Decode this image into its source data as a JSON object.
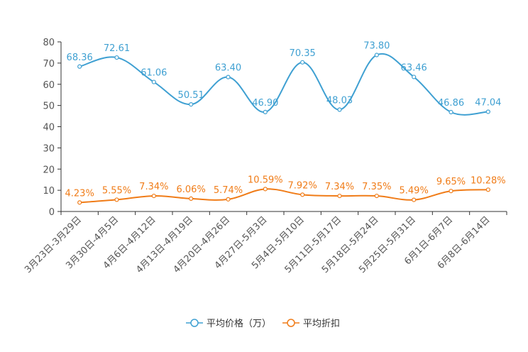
{
  "chart_data": {
    "type": "line",
    "categories": [
      "3月23日-3月29日",
      "3月30日-4月5日",
      "4月6日-4月12日",
      "4月13日-4月19日",
      "4月20日-4月26日",
      "4月27日-5月3日",
      "5月4日-5月10日",
      "5月11日-5月17日",
      "5月18日-5月24日",
      "5月25日-5月31日",
      "6月1日-6月7日",
      "6月8日-6月14日"
    ],
    "ylim": [
      0,
      80
    ],
    "yticks": [
      0,
      10,
      20,
      30,
      40,
      50,
      60,
      70,
      80
    ],
    "smooth": true,
    "series": [
      {
        "name": "平均价格（万）",
        "color": "#3fa0d2",
        "values": [
          68.36,
          72.61,
          61.06,
          50.51,
          63.4,
          46.9,
          70.35,
          48.03,
          73.8,
          63.46,
          46.86,
          47.04
        ],
        "labels": [
          "68.36",
          "72.61",
          "61.06",
          "50.51",
          "63.40",
          "46.90",
          "70.35",
          "48.03",
          "73.80",
          "63.46",
          "46.86",
          "47.04"
        ]
      },
      {
        "name": "平均折扣",
        "color": "#f07c18",
        "values": [
          4.23,
          5.55,
          7.34,
          6.06,
          5.74,
          10.59,
          7.92,
          7.34,
          7.35,
          5.49,
          9.65,
          10.28
        ],
        "labels": [
          "4.23%",
          "5.55%",
          "7.34%",
          "6.06%",
          "5.74%",
          "10.59%",
          "7.92%",
          "7.34%",
          "7.35%",
          "5.49%",
          "9.65%",
          "10.28%"
        ]
      }
    ]
  }
}
